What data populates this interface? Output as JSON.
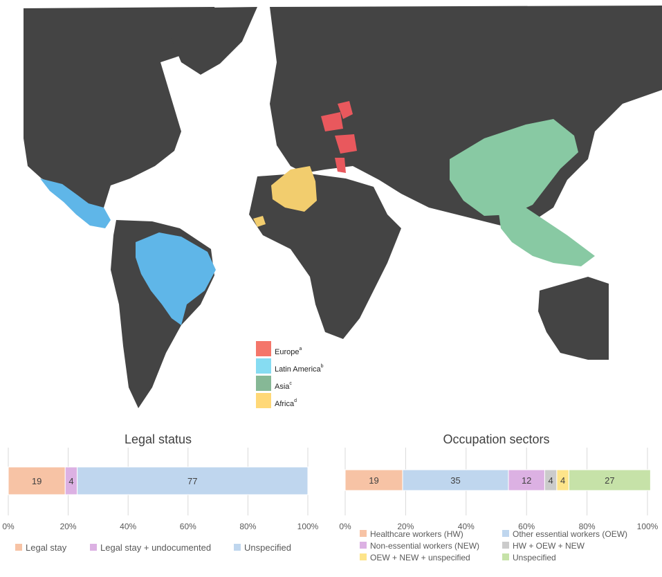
{
  "map_legend": {
    "items": [
      {
        "label": "Europe",
        "sup": "a",
        "color": "#f4766a"
      },
      {
        "label": "Latin America",
        "sup": "b",
        "color": "#86dcf2"
      },
      {
        "label": "Asia",
        "sup": "c",
        "color": "#86b896"
      },
      {
        "label": "Africa",
        "sup": "d",
        "color": "#ffd877"
      }
    ]
  },
  "map_colors": {
    "ocean": "#ffffff",
    "land": "#444444",
    "europe_fill": "#e9585d",
    "latin_america_fill": "#5fb6e8",
    "asia_fill": "#88c9a3",
    "africa_fill": "#f2cd6e"
  },
  "chart_data": [
    {
      "type": "bar",
      "orientation": "horizontal-stacked",
      "title": "Legal status",
      "xlim": [
        0,
        100
      ],
      "ticks": [
        "0%",
        "20%",
        "40%",
        "60%",
        "80%",
        "100%"
      ],
      "legend_position": "bottom",
      "series": [
        {
          "name": "Legal stay",
          "value": 19,
          "color": "#f7c3a5"
        },
        {
          "name": "Legal stay + undocumented",
          "value": 4,
          "color": "#dcb1e3"
        },
        {
          "name": "Unspecified",
          "value": 77,
          "color": "#bfd6ee"
        }
      ]
    },
    {
      "type": "bar",
      "orientation": "horizontal-stacked",
      "title": "Occupation sectors",
      "xlim": [
        0,
        100
      ],
      "ticks": [
        "0%",
        "20%",
        "40%",
        "60%",
        "80%",
        "100%"
      ],
      "legend_position": "bottom",
      "series": [
        {
          "name": "Healthcare workers (HW)",
          "value": 19,
          "color": "#f7c3a5"
        },
        {
          "name": "Other essential workers (OEW)",
          "value": 35,
          "color": "#bfd6ee"
        },
        {
          "name": "Non-essential workers (NEW)",
          "value": 12,
          "color": "#dcb1e3"
        },
        {
          "name": "HW + OEW + NEW",
          "value": 4,
          "color": "#cbcbcb"
        },
        {
          "name": "OEW + NEW + unspecified",
          "value": 4,
          "color": "#fde48a"
        },
        {
          "name": "Unspecified",
          "value": 27,
          "color": "#c6e2a8"
        }
      ]
    }
  ]
}
